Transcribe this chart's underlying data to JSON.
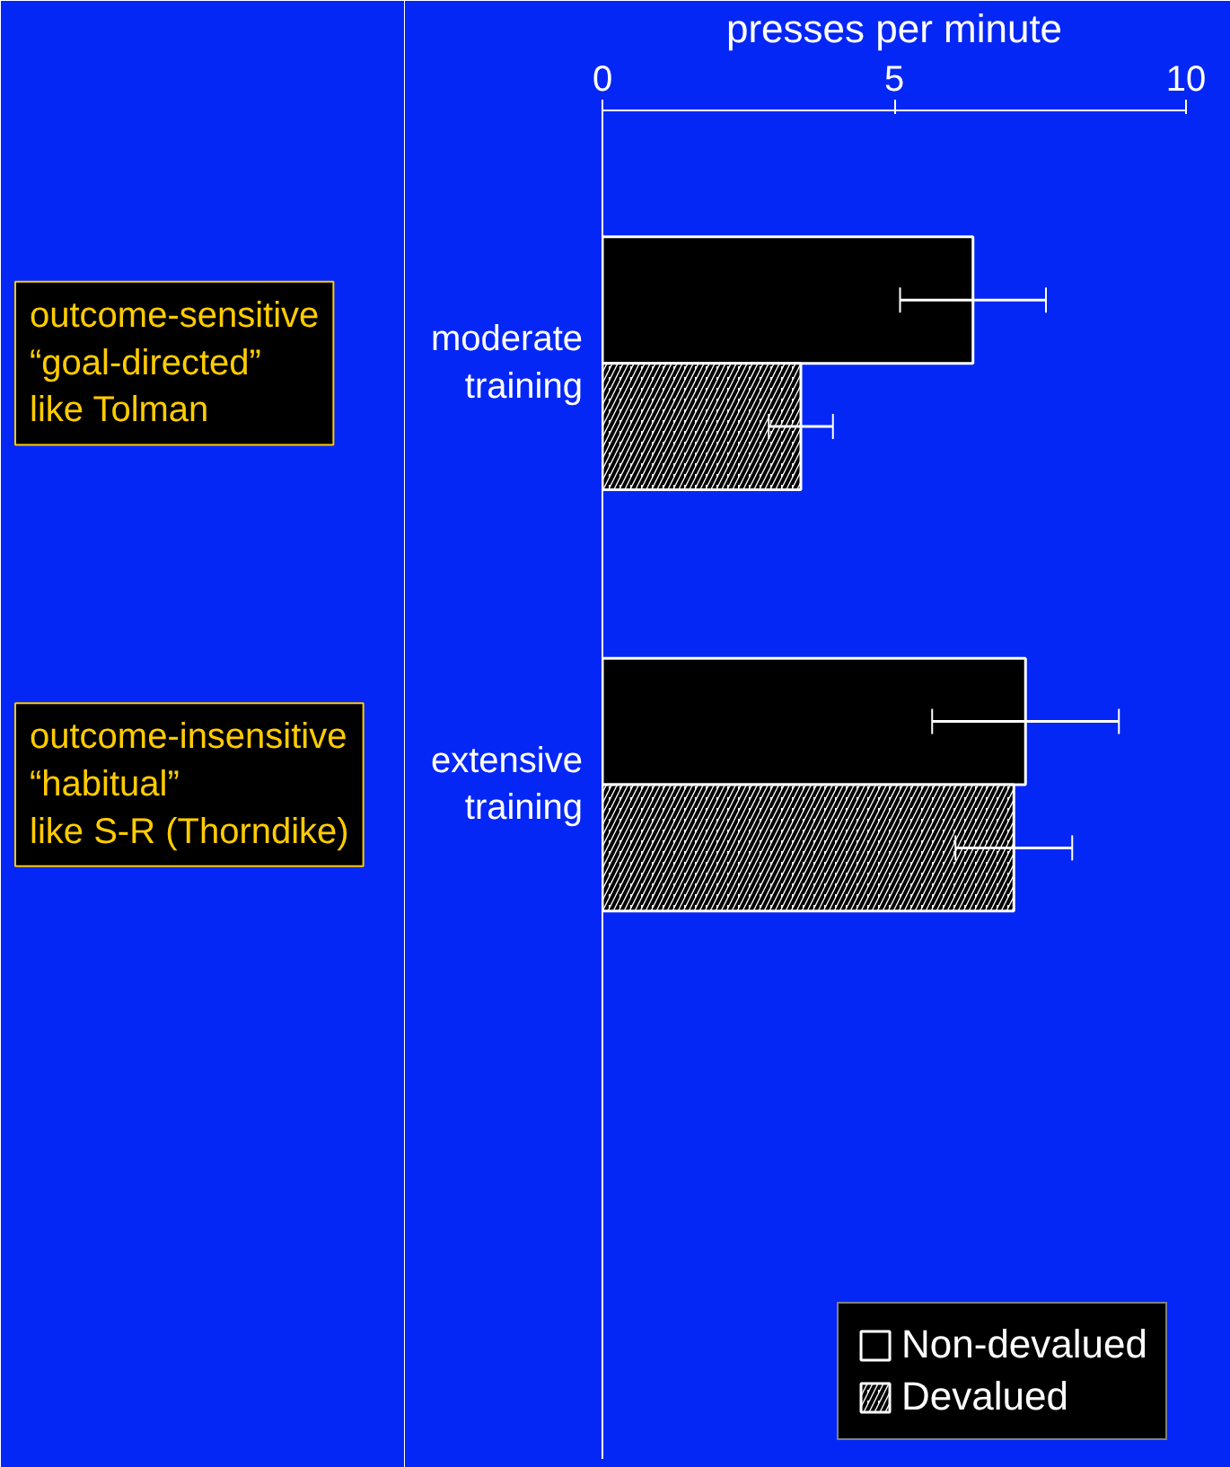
{
  "chart_data": {
    "type": "bar",
    "orientation": "horizontal",
    "xlabel": "presses per minute",
    "categories": [
      "moderate\ntraining",
      "extensive\ntraining"
    ],
    "series": [
      {
        "name": "Non-devalued",
        "color": "#000000",
        "values": [
          6.35,
          7.25
        ],
        "errors": [
          1.25,
          1.6
        ]
      },
      {
        "name": "Devalued",
        "color": "#ffffff",
        "values": [
          3.4,
          7.05
        ],
        "errors": [
          0.55,
          1.0
        ]
      }
    ],
    "xlim": [
      0,
      10
    ],
    "xticks": [
      0,
      5,
      10
    ],
    "grid": false,
    "legend": "bottom right",
    "annotations": [
      "outcome-sensitive\n“goal-directed”\nlike Tolman",
      "outcome-insensitive\n“habitual”\nlike S-R (Thorndike)"
    ]
  }
}
